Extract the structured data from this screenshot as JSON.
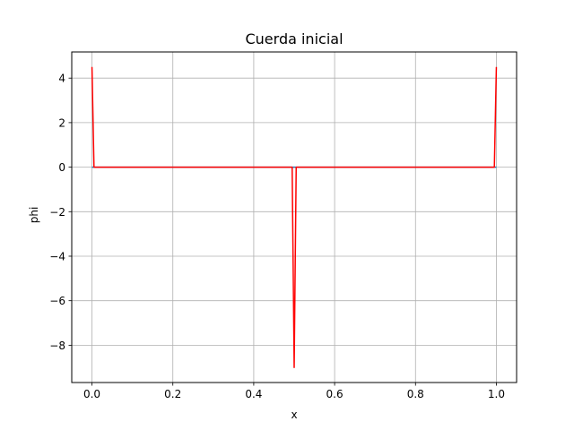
{
  "colors": {
    "line": "#ff0000",
    "secondary_line": "#1f77b4",
    "grid": "#b0b0b0",
    "axes": "#000000",
    "background": "#ffffff"
  },
  "chart_data": {
    "type": "line",
    "title": "Cuerda inicial",
    "xlabel": "x",
    "ylabel": "phi",
    "xlim": [
      -0.05,
      1.05
    ],
    "ylim": [
      -9.675,
      5.175
    ],
    "grid": true,
    "x_ticks": [
      0.0,
      0.2,
      0.4,
      0.6,
      0.8,
      1.0
    ],
    "x_tick_labels": [
      "0.0",
      "0.2",
      "0.4",
      "0.6",
      "0.8",
      "1.0"
    ],
    "y_ticks": [
      -8,
      -6,
      -4,
      -2,
      0,
      2,
      4
    ],
    "y_tick_labels": [
      "−8",
      "−6",
      "−4",
      "−2",
      "0",
      "2",
      "4"
    ],
    "series": [
      {
        "color": "#1f77b4",
        "x": [
          0.0,
          1.0
        ],
        "y": [
          0.0,
          0.0
        ]
      },
      {
        "color": "#ff0000",
        "x": [
          0.0,
          0.005,
          0.495,
          0.5,
          0.505,
          0.995,
          1.0
        ],
        "y": [
          4.5,
          0.0,
          0.0,
          -9.0,
          0.0,
          0.0,
          4.5
        ]
      }
    ]
  }
}
